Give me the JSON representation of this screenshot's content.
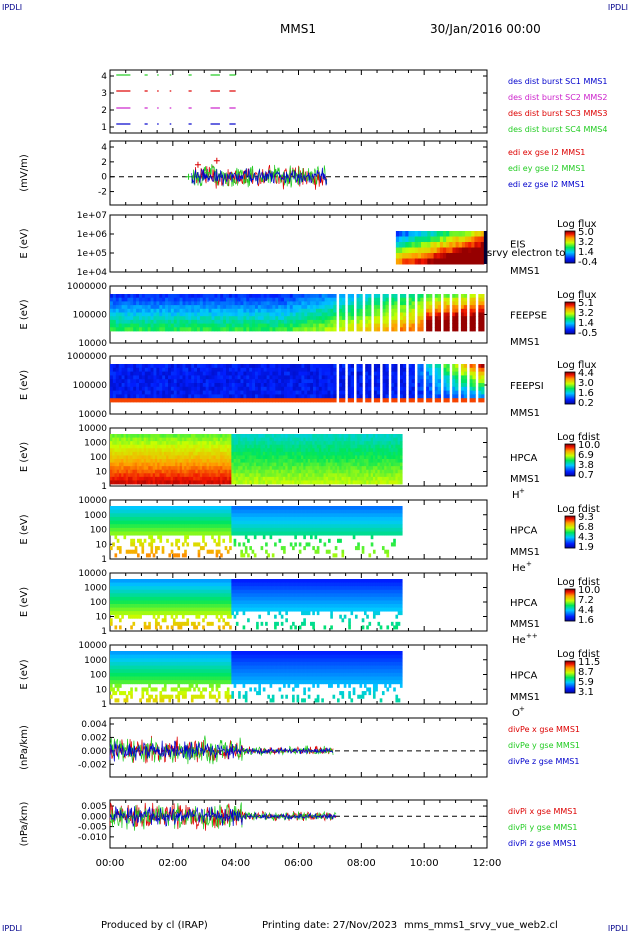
{
  "header": {
    "corner_label": "IPDLI",
    "spacecraft": "MMS1",
    "date_time": "30/Jan/2016 00:00"
  },
  "footer": {
    "produced_by": "Produced by cl (IRAP)",
    "printing_date": "Printing date: 27/Nov/2023",
    "filename": "mms_mms1_srvy_vue_web2.cl"
  },
  "colors": {
    "red": "#dd0000",
    "green": "#22cc22",
    "blue": "#0000cc",
    "magenta": "#cc22cc",
    "axis": "#000000"
  },
  "chart_data": {
    "type": "multi-panel",
    "x_tick_labels": [
      "00:00",
      "02:00",
      "04:00",
      "06:00",
      "08:00",
      "10:00",
      "12:00"
    ],
    "xlim_hours": [
      0,
      12
    ],
    "panels": [
      {
        "id": "des-dist-burst",
        "type": "line",
        "ylabel": "",
        "y_ticks": [
          "4",
          "3",
          "2",
          "1"
        ],
        "legend": [
          {
            "label": "des dist burst SC1 MMS1",
            "color": "#0000cc"
          },
          {
            "label": "des dist burst SC2 MMS2",
            "color": "#cc22cc"
          },
          {
            "label": "des dist burst SC3 MMS3",
            "color": "#dd0000"
          },
          {
            "label": "des dist burst SC4 MMS4",
            "color": "#22cc22"
          }
        ]
      },
      {
        "id": "edi-efield",
        "type": "line",
        "ylabel": "(mV/m)",
        "y_ticks": [
          "4",
          "2",
          "0",
          "-2"
        ],
        "legend": [
          {
            "label": "edi ex gse l2 MMS1",
            "color": "#dd0000"
          },
          {
            "label": "edi ey gse l2 MMS1",
            "color": "#22cc22"
          },
          {
            "label": "edi ez gse l2 MMS1",
            "color": "#0000cc"
          }
        ]
      },
      {
        "id": "eis",
        "type": "heatmap",
        "ylabel": "E (eV)",
        "y_ticks": [
          "1e+07",
          "1e+06",
          "1e+05",
          "1e+04"
        ],
        "instrument": "EIS",
        "overlay_text": "srvy electron to",
        "spacecraft": "MMS1",
        "colorbar_title": "Log flux",
        "colorbar_ticks": [
          "5.0",
          "3.2",
          "1.4",
          "-0.4"
        ]
      },
      {
        "id": "feeps-e",
        "type": "heatmap",
        "ylabel": "E (eV)",
        "y_ticks": [
          "1000000",
          "100000",
          "10000"
        ],
        "instrument": "FEEPSE",
        "spacecraft": "MMS1",
        "colorbar_title": "Log flux",
        "colorbar_ticks": [
          "5.1",
          "3.2",
          "1.4",
          "-0.5"
        ]
      },
      {
        "id": "feeps-i",
        "type": "heatmap",
        "ylabel": "E (eV)",
        "y_ticks": [
          "1000000",
          "100000",
          "10000"
        ],
        "instrument": "FEEPSI",
        "spacecraft": "MMS1",
        "colorbar_title": "Log flux",
        "colorbar_ticks": [
          "4.4",
          "3.0",
          "1.6",
          "0.2"
        ]
      },
      {
        "id": "hpca-h",
        "type": "heatmap",
        "ylabel": "E (eV)",
        "y_ticks": [
          "10000",
          "1000",
          "100",
          "10",
          "1"
        ],
        "instrument": "HPCA",
        "spacecraft": "MMS1",
        "species": "H",
        "species_charge": "+",
        "colorbar_title": "Log fdist",
        "colorbar_ticks": [
          "10.0",
          "6.9",
          "3.8",
          "0.7"
        ]
      },
      {
        "id": "hpca-he1",
        "type": "heatmap",
        "ylabel": "E (eV)",
        "y_ticks": [
          "10000",
          "1000",
          "100",
          "10",
          "1"
        ],
        "instrument": "HPCA",
        "spacecraft": "MMS1",
        "species": "He",
        "species_charge": "+",
        "colorbar_title": "Log fdist",
        "colorbar_ticks": [
          "9.3",
          "6.8",
          "4.3",
          "1.9"
        ]
      },
      {
        "id": "hpca-he2",
        "type": "heatmap",
        "ylabel": "E (eV)",
        "y_ticks": [
          "10000",
          "1000",
          "100",
          "10",
          "1"
        ],
        "instrument": "HPCA",
        "spacecraft": "MMS1",
        "species": "He",
        "species_charge": "++",
        "colorbar_title": "Log fdist",
        "colorbar_ticks": [
          "10.0",
          "7.2",
          "4.4",
          "1.6"
        ]
      },
      {
        "id": "hpca-o",
        "type": "heatmap",
        "ylabel": "E (eV)",
        "y_ticks": [
          "10000",
          "1000",
          "100",
          "10",
          "1"
        ],
        "instrument": "HPCA",
        "spacecraft": "MMS1",
        "species": "O",
        "species_charge": "+",
        "colorbar_title": "Log fdist",
        "colorbar_ticks": [
          "11.5",
          "8.7",
          "5.9",
          "3.1"
        ]
      },
      {
        "id": "divpe",
        "type": "line",
        "ylabel": "(nPa/km)",
        "y_ticks": [
          "0.004",
          "0.002",
          "0.000",
          "-0.002"
        ],
        "legend": [
          {
            "label": "divPe x gse MMS1",
            "color": "#dd0000"
          },
          {
            "label": "divPe y gse MMS1",
            "color": "#22cc22"
          },
          {
            "label": "divPe z gse MMS1",
            "color": "#0000cc"
          }
        ]
      },
      {
        "id": "divpi",
        "type": "line",
        "ylabel": "(nPa/km)",
        "y_ticks": [
          "0.005",
          "0.000",
          "-0.005",
          "-0.010"
        ],
        "legend": [
          {
            "label": "divPi x gse MMS1",
            "color": "#dd0000"
          },
          {
            "label": "divPi y gse MMS1",
            "color": "#22cc22"
          },
          {
            "label": "divPi z gse MMS1",
            "color": "#0000cc"
          }
        ]
      }
    ]
  }
}
